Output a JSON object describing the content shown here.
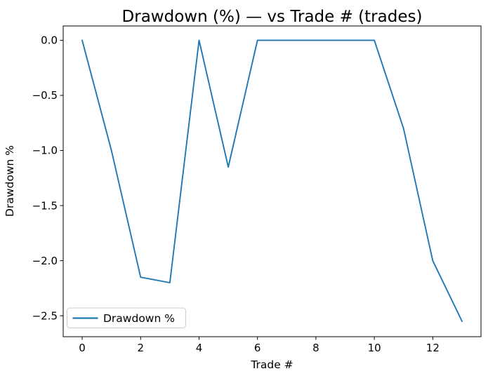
{
  "chart_data": {
    "type": "line",
    "title": "Drawdown (%) — vs Trade # (trades)",
    "xlabel": "Trade #",
    "ylabel": "Drawdown %",
    "x": [
      0,
      1,
      2,
      3,
      4,
      5,
      6,
      7,
      8,
      9,
      10,
      11,
      12,
      13
    ],
    "series": [
      {
        "name": "Drawdown %",
        "color": "#1f77b4",
        "values": [
          0.0,
          -1.0,
          -2.15,
          -2.2,
          0.0,
          -1.15,
          0.0,
          0.0,
          0.0,
          0.0,
          0.0,
          -0.8,
          -2.0,
          -2.55
        ]
      }
    ],
    "xlim": [
      -0.65,
      13.65
    ],
    "ylim": [
      -2.69,
      0.13
    ],
    "xticks": [
      0,
      2,
      4,
      6,
      8,
      10,
      12
    ],
    "xtick_labels": [
      "0",
      "2",
      "4",
      "6",
      "8",
      "10",
      "12"
    ],
    "yticks": [
      0.0,
      -0.5,
      -1.0,
      -1.5,
      -2.0,
      -2.5
    ],
    "ytick_labels": [
      "0.0",
      "−0.5",
      "−1.0",
      "−1.5",
      "−2.0",
      "−2.5"
    ],
    "grid": false,
    "legend": {
      "position": "lower left",
      "entries": [
        "Drawdown %"
      ]
    },
    "colors": {
      "line": "#1f77b4",
      "spine": "#000000",
      "background": "#ffffff",
      "legend_border": "#cccccc",
      "text": "#000000"
    }
  }
}
